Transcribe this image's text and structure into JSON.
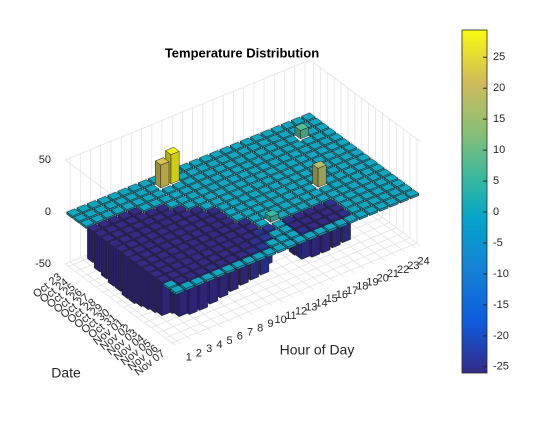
{
  "chart_data": {
    "type": "bar3",
    "title": "Temperature Distribution",
    "xlabel": "Hour of Day",
    "ylabel": "Date",
    "x": [
      1,
      2,
      3,
      4,
      5,
      6,
      7,
      8,
      9,
      10,
      11,
      12,
      13,
      14,
      15,
      16,
      17,
      18,
      19,
      20,
      21,
      22,
      23,
      24
    ],
    "categories": [
      "Oct 23",
      "Oct 24",
      "Oct 25",
      "Oct 26",
      "Oct 27",
      "Oct 28",
      "Oct 29",
      "Oct 30",
      "Oct 31",
      "Nov 01",
      "Nov 02",
      "Nov 03",
      "Nov 04",
      "Nov 05",
      "Nov 06",
      "Nov 07"
    ],
    "values": [
      [
        0,
        0,
        0,
        0,
        0,
        0,
        0,
        0,
        0,
        0,
        0,
        0,
        0,
        0,
        0,
        0,
        0,
        0,
        0,
        0,
        0,
        0,
        0,
        0
      ],
      [
        0,
        0,
        0,
        0,
        0,
        0,
        0,
        0,
        22,
        28,
        0,
        0,
        0,
        0,
        0,
        0,
        0,
        0,
        0,
        0,
        0,
        0,
        0,
        0
      ],
      [
        0,
        0,
        0,
        0,
        0,
        0,
        0,
        0,
        0,
        0,
        0,
        0,
        0,
        0,
        0,
        0,
        0,
        0,
        0,
        0,
        0,
        8,
        0,
        0
      ],
      [
        -30,
        -32,
        -34,
        -30,
        -28,
        0,
        0,
        0,
        0,
        0,
        0,
        0,
        0,
        0,
        0,
        0,
        0,
        0,
        0,
        0,
        0,
        0,
        0,
        0
      ],
      [
        -34,
        -36,
        -38,
        -36,
        -33,
        -30,
        -28,
        0,
        0,
        0,
        0,
        0,
        0,
        0,
        0,
        0,
        0,
        0,
        0,
        0,
        0,
        0,
        0,
        0
      ],
      [
        -36,
        -38,
        -40,
        -38,
        -36,
        -34,
        -32,
        -30,
        0,
        0,
        0,
        0,
        0,
        0,
        0,
        0,
        0,
        0,
        0,
        0,
        0,
        0,
        0,
        0
      ],
      [
        -38,
        -40,
        -42,
        -40,
        -38,
        -36,
        -34,
        -32,
        -30,
        0,
        0,
        0,
        0,
        0,
        0,
        0,
        0,
        0,
        0,
        0,
        0,
        0,
        0,
        0
      ],
      [
        -38,
        -42,
        -44,
        -42,
        -40,
        -38,
        -36,
        -34,
        -32,
        -30,
        0,
        0,
        0,
        0,
        0,
        0,
        0,
        0,
        0,
        0,
        0,
        0,
        0,
        0
      ],
      [
        -40,
        -42,
        -44,
        -42,
        -40,
        -38,
        -36,
        -34,
        -32,
        -30,
        0,
        0,
        0,
        0,
        0,
        0,
        0,
        0,
        0,
        0,
        0,
        0,
        0,
        0
      ],
      [
        -40,
        -42,
        -45,
        -43,
        -40,
        -38,
        -36,
        -34,
        -32,
        -30,
        0,
        0,
        0,
        0,
        0,
        0,
        0,
        0,
        18,
        0,
        0,
        0,
        0,
        0
      ],
      [
        -38,
        -40,
        -43,
        -42,
        -40,
        -38,
        -35,
        -33,
        -31,
        -30,
        -28,
        0,
        0,
        0,
        0,
        0,
        0,
        0,
        0,
        0,
        0,
        0,
        0,
        0
      ],
      [
        -36,
        -38,
        -40,
        -40,
        -38,
        -36,
        -34,
        -32,
        -30,
        -28,
        -26,
        0,
        5,
        0,
        0,
        0,
        0,
        0,
        0,
        0,
        0,
        0,
        0,
        0
      ],
      [
        -34,
        -36,
        -38,
        -38,
        -36,
        -34,
        -32,
        -30,
        -28,
        -26,
        -25,
        -24,
        0,
        -25,
        -26,
        -27,
        -26,
        -25,
        0,
        0,
        0,
        0,
        0,
        0
      ],
      [
        -32,
        -34,
        -36,
        -36,
        -34,
        -32,
        -30,
        -28,
        -26,
        -25,
        -24,
        0,
        0,
        -26,
        -28,
        -28,
        -27,
        -26,
        0,
        0,
        0,
        0,
        0,
        0
      ],
      [
        0,
        -32,
        -34,
        -34,
        -32,
        -30,
        -28,
        -26,
        -25,
        -24,
        0,
        0,
        0,
        -25,
        -27,
        -27,
        -26,
        -25,
        0,
        0,
        0,
        0,
        0,
        0
      ],
      [
        0,
        0,
        0,
        0,
        0,
        0,
        0,
        0,
        0,
        0,
        0,
        0,
        0,
        0,
        0,
        0,
        0,
        0,
        0,
        0,
        0,
        0,
        0,
        0
      ]
    ],
    "zlim": [
      -50,
      50
    ],
    "zticks": [
      -50,
      0,
      50
    ],
    "clim": [
      -26,
      29.4
    ],
    "colorbar_ticks": [
      -25,
      -20,
      -15,
      -10,
      -5,
      0,
      5,
      10,
      15,
      20,
      25
    ],
    "colormap": "parula",
    "grid": true
  }
}
